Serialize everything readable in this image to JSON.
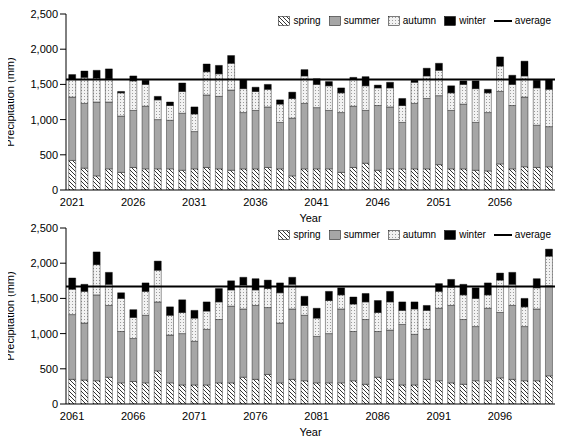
{
  "chart_data": [
    {
      "type": "bar",
      "stacked": true,
      "x_label": "Year",
      "y_label": "Precipitation (mm)",
      "categories": [
        "2021",
        null,
        null,
        null,
        null,
        "2026",
        null,
        null,
        null,
        null,
        "2031",
        null,
        null,
        null,
        null,
        "2036",
        null,
        null,
        null,
        null,
        "2041",
        null,
        null,
        null,
        null,
        "2046",
        null,
        null,
        null,
        null,
        "2051",
        null,
        null,
        null,
        null,
        "2056",
        null,
        null,
        null,
        null
      ],
      "ylim": [
        0,
        2500
      ],
      "yticks": [
        0,
        500,
        {
          "value": 1000,
          "label": "1,000"
        },
        {
          "value": 1500,
          "label": "1,500"
        },
        {
          "value": 2000,
          "label": "2,000"
        },
        {
          "value": 2500,
          "label": "2,500"
        }
      ],
      "series": [
        {
          "name": "spring",
          "color": "#000000",
          "values": [
            420,
            310,
            200,
            300,
            250,
            320,
            300,
            300,
            300,
            280,
            300,
            320,
            300,
            280,
            300,
            300,
            320,
            300,
            200,
            300,
            300,
            300,
            250,
            320,
            380,
            280,
            300,
            300,
            300,
            300,
            360,
            300,
            300,
            280,
            270,
            370,
            300,
            330,
            320,
            330
          ]
        },
        {
          "name": "summer",
          "color": "#a6a6a6",
          "values": [
            900,
            920,
            1050,
            950,
            800,
            810,
            890,
            700,
            690,
            810,
            530,
            1030,
            1030,
            1140,
            800,
            830,
            860,
            660,
            820,
            930,
            870,
            830,
            850,
            870,
            750,
            920,
            880,
            660,
            930,
            1000,
            980,
            830,
            920,
            680,
            830,
            1030,
            900,
            990,
            600,
            570
          ]
        },
        {
          "name": "autumn",
          "color": "#808080",
          "values": [
            250,
            370,
            340,
            330,
            330,
            420,
            310,
            280,
            210,
            310,
            250,
            330,
            320,
            380,
            340,
            270,
            250,
            260,
            280,
            390,
            330,
            350,
            280,
            380,
            350,
            250,
            270,
            240,
            300,
            320,
            360,
            250,
            280,
            480,
            280,
            360,
            300,
            300,
            530,
            530
          ]
        },
        {
          "name": "winter",
          "color": "#000000",
          "values": [
            70,
            90,
            110,
            140,
            20,
            70,
            60,
            50,
            50,
            120,
            100,
            110,
            120,
            110,
            130,
            60,
            70,
            60,
            90,
            90,
            80,
            60,
            70,
            30,
            130,
            40,
            80,
            100,
            30,
            110,
            100,
            100,
            50,
            110,
            50,
            130,
            130,
            210,
            110,
            140
          ]
        }
      ],
      "average": {
        "name": "average",
        "color": "#000000",
        "value": 1570
      }
    },
    {
      "type": "bar",
      "stacked": true,
      "x_label": "Year",
      "y_label": "Precipitation (mm)",
      "categories": [
        "2061",
        null,
        null,
        null,
        null,
        "2066",
        null,
        null,
        null,
        null,
        "2071",
        null,
        null,
        null,
        null,
        "2076",
        null,
        null,
        null,
        null,
        "2081",
        null,
        null,
        null,
        null,
        "2086",
        null,
        null,
        null,
        null,
        "2091",
        null,
        null,
        null,
        null,
        "2096",
        null,
        null,
        null,
        null
      ],
      "ylim": [
        0,
        2500
      ],
      "yticks": [
        0,
        500,
        {
          "value": 1000,
          "label": "1,000"
        },
        {
          "value": 1500,
          "label": "1,500"
        },
        {
          "value": 2000,
          "label": "2,000"
        },
        {
          "value": 2500,
          "label": "2,500"
        }
      ],
      "series": [
        {
          "name": "spring",
          "color": "#000000",
          "values": [
            350,
            340,
            330,
            380,
            300,
            320,
            300,
            470,
            300,
            270,
            270,
            270,
            300,
            300,
            380,
            350,
            420,
            300,
            350,
            330,
            300,
            300,
            300,
            330,
            280,
            380,
            350,
            270,
            270,
            350,
            330,
            300,
            280,
            330,
            330,
            370,
            350,
            330,
            330,
            400
          ]
        },
        {
          "name": "summer",
          "color": "#a6a6a6",
          "values": [
            920,
            810,
            1220,
            1020,
            730,
            610,
            960,
            980,
            680,
            730,
            620,
            790,
            900,
            1090,
            970,
            1050,
            950,
            850,
            1000,
            930,
            660,
            700,
            1050,
            700,
            920,
            650,
            700,
            860,
            720,
            710,
            1030,
            1100,
            920,
            770,
            1030,
            930,
            1050,
            770,
            1020,
            1280
          ]
        },
        {
          "name": "autumn",
          "color": "#808080",
          "values": [
            360,
            450,
            430,
            300,
            470,
            300,
            340,
            450,
            280,
            300,
            330,
            260,
            250,
            230,
            340,
            220,
            270,
            430,
            350,
            140,
            260,
            470,
            200,
            390,
            250,
            270,
            400,
            200,
            360,
            270,
            240,
            260,
            350,
            400,
            190,
            460,
            300,
            280,
            300,
            420
          ]
        },
        {
          "name": "winter",
          "color": "#000000",
          "values": [
            160,
            100,
            180,
            170,
            80,
            110,
            120,
            130,
            120,
            180,
            110,
            130,
            190,
            130,
            110,
            160,
            120,
            140,
            100,
            130,
            140,
            130,
            100,
            100,
            120,
            170,
            150,
            120,
            100,
            70,
            110,
            110,
            150,
            150,
            170,
            100,
            170,
            120,
            130,
            100
          ]
        }
      ],
      "average": {
        "name": "average",
        "color": "#000000",
        "value": 1670
      }
    }
  ]
}
